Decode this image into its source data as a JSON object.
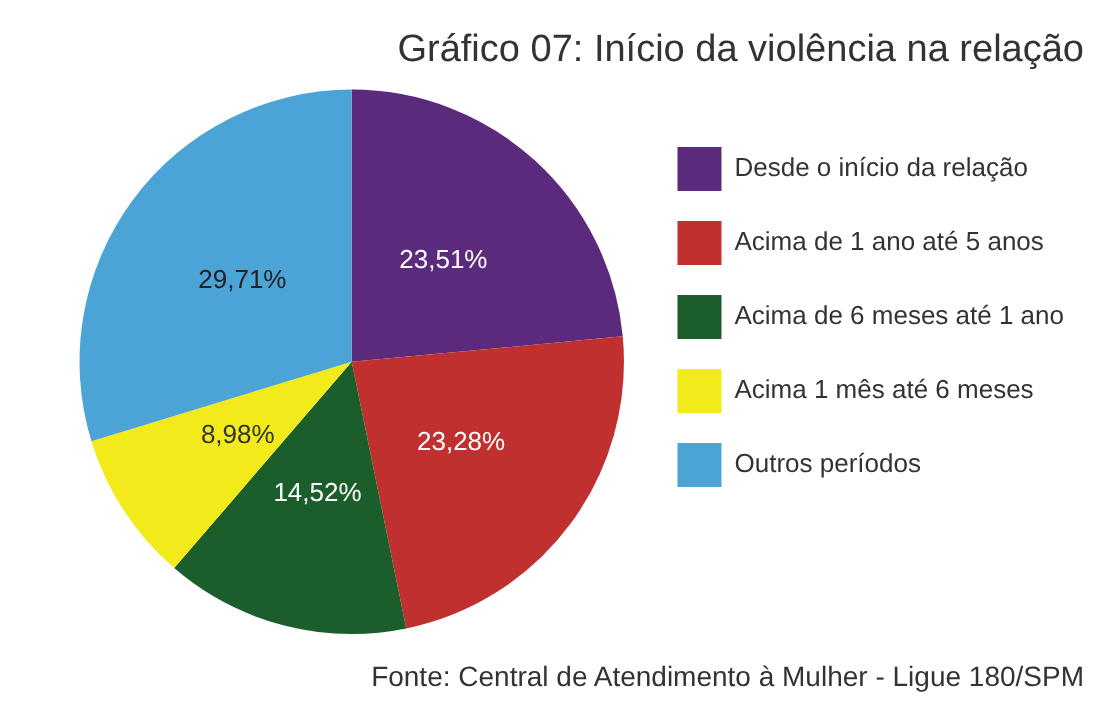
{
  "chart_data": {
    "type": "pie",
    "title": "Gráfico 07: Início da violência na relação",
    "categories": [
      "Desde o início da relação",
      "Acima de 1 ano até 5 anos",
      "Acima de 6 meses até 1 ano",
      "Acima 1 mês até 6 meses",
      "Outros períodos"
    ],
    "values": [
      23.51,
      23.28,
      14.52,
      8.98,
      29.71
    ],
    "colors": [
      "#5c2a7c",
      "#c0302e",
      "#1b5e2c",
      "#f3ea1c",
      "#4ba3d6"
    ],
    "value_labels": [
      "23,51%",
      "23,28%",
      "14,52%",
      "8,98%",
      "29,71%"
    ],
    "legend": "right",
    "annotations": [
      "Fonte: Central de Atendimento à Mulher - Ligue 180/SPM"
    ]
  }
}
